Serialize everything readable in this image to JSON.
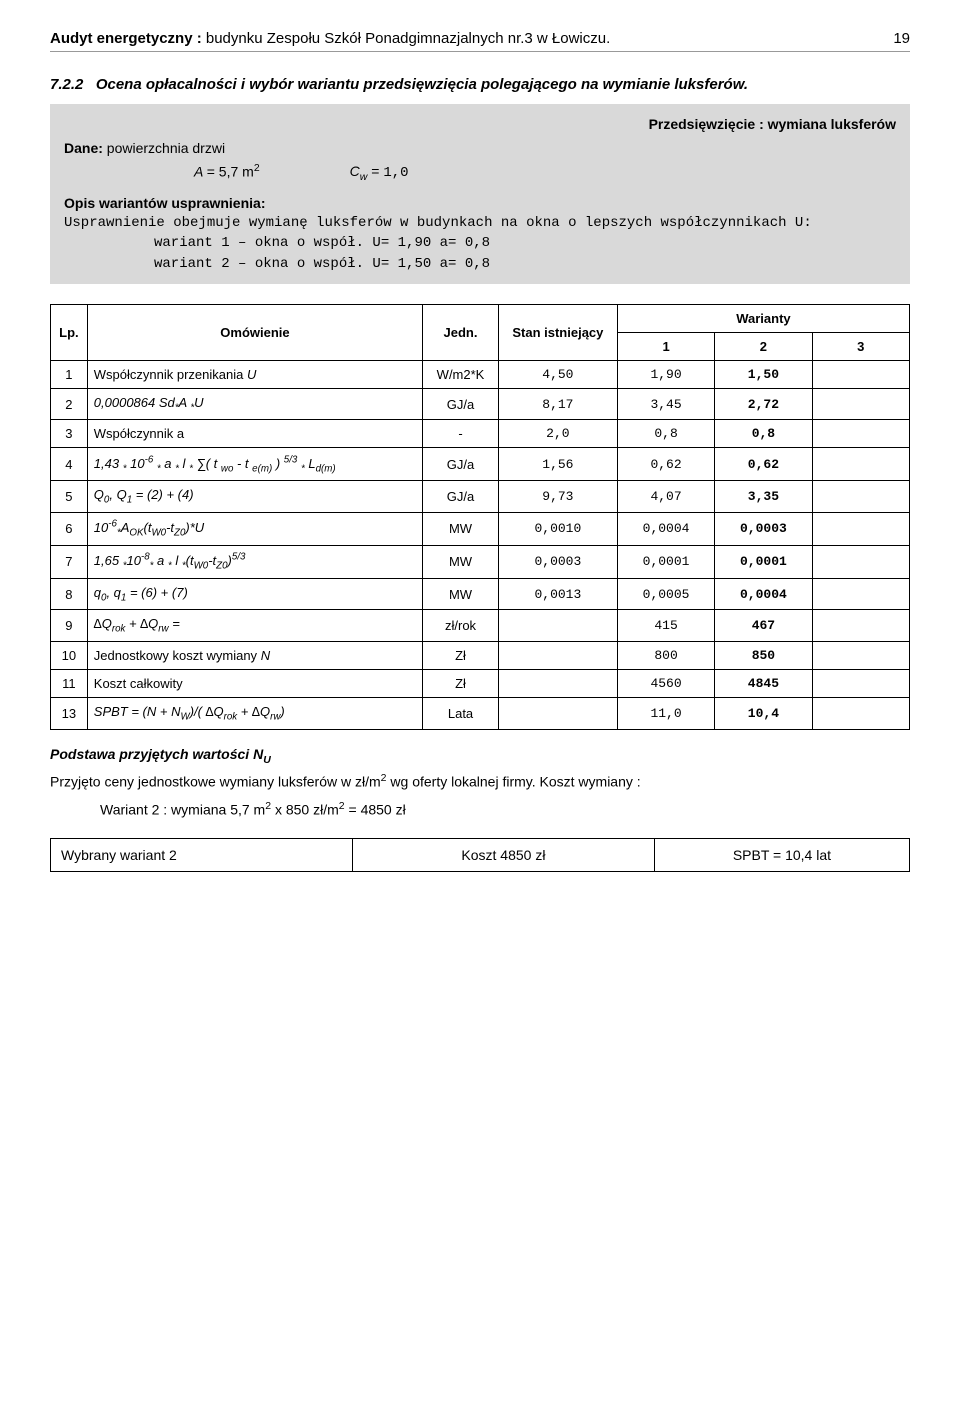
{
  "header": {
    "prefix": "Audyt energetyczny : ",
    "title": "budynku  Zespołu Szkół Ponadgimnazjalnych  nr.3  w Łowiczu.",
    "page": "19"
  },
  "section": {
    "num": "7.2.2",
    "title": "Ocena opłacalności i wybór wariantu przedsięwzięcia polegającego na wymianie luksferów."
  },
  "graybox": {
    "rightLabel": "Przedsięwzięcie : wymiana luksferów",
    "l1_label": "Dane:",
    "l1_text": " powierzchnia  drzwi",
    "formula_A_lhs": "A ",
    "formula_A_rhs": " =  5,7 m",
    "formula_A_sup": "2",
    "formula_C_lhs": "C",
    "formula_C_sub": "w",
    "formula_C_rhs": " = ",
    "formula_C_val": "1,0",
    "opis_head": "Opis wariantów usprawnienia:",
    "opis_text": "Usprawnienie obejmuje wymianę luksferów w budynkach na okna o lepszych współczynnikach U:",
    "war1": "wariant 1 – okna o współ.  U= 1,90 a= 0,8",
    "war2": "wariant 2 – okna o współ.  U= 1,50 a= 0,8"
  },
  "table": {
    "headers": {
      "lp": "Lp.",
      "om": "Omówienie",
      "jed": "Jedn.",
      "stan": "Stan istniejący",
      "war": "Warianty",
      "w1": "1",
      "w2": "2",
      "w3": "3"
    },
    "rows": [
      {
        "lp": "1",
        "om_html": "Współczynnik przenikania        <span class='italic'>U</span>",
        "jed": "W/m2*K",
        "stan": "4,50",
        "v1": "1,90",
        "v2": "1,50",
        "v3": ""
      },
      {
        "lp": "2",
        "om_html": "<span class='italic'>0,0000864 Sd<sub>*</sub>A <sub>*</sub>U</span>",
        "jed": "GJ/a",
        "stan": "8,17",
        "v1": "3,45",
        "v2": "2,72",
        "v3": ""
      },
      {
        "lp": "3",
        "om_html": "Współczynnik a",
        "jed": "-",
        "stan": "2,0",
        "v1": "0,8",
        "v2": "0,8",
        "v3": ""
      },
      {
        "lp": "4",
        "om_html": "<span class='italic'>1,43 <sub>*</sub> 10<sup>-6</sup> <sub>*</sub> a <sub>*</sub> l <sub>*</sub> ∑( t <sub>wo</sub> - t <sub>e(m)</sub> ) <sup>5/3</sup> <sub>*</sub> L<sub>d(m)</sub></span>",
        "jed": "GJ/a",
        "stan": "1,56",
        "v1": "0,62",
        "v2": "0,62",
        "v3": ""
      },
      {
        "lp": "5",
        "om_html": "<span class='italic'>Q<sub>0</sub>, Q<sub>1</sub> = (2) + (4)</span>",
        "jed": "GJ/a",
        "stan": "9,73",
        "v1": "4,07",
        "v2": "3,35",
        "v3": ""
      },
      {
        "lp": "6",
        "om_html": "<span class='italic'>10<sup>-6</sup><sub>*</sub>A<sub>OK</sub>(t<sub>W0</sub>-t<sub>Z0</sub>)*U</span>",
        "jed": "MW",
        "stan": "0,0010",
        "v1": "0,0004",
        "v2": "0,0003",
        "v3": ""
      },
      {
        "lp": "7",
        "om_html": "<span class='italic'>1,65 <sub>*</sub>10<sup>-8</sup><sub>*</sub> a <sub>*</sub> l <sub>*</sub>(t<sub>W0</sub>-t<sub>Z0</sub>)<sup>5/3</sup></span>",
        "jed": "MW",
        "stan": "0,0003",
        "v1": "0,0001",
        "v2": "0,0001",
        "v3": ""
      },
      {
        "lp": "8",
        "om_html": "<span class='italic'>q<sub>0</sub>, q<sub>1</sub> = (6) + (7)</span>",
        "jed": "MW",
        "stan": "0,0013",
        "v1": "0,0005",
        "v2": "0,0004",
        "v3": ""
      },
      {
        "lp": "9",
        "om_html": "<span class='italic'>∆Q<sub>rok</sub> + ∆Q<sub>rw</sub> =</span>",
        "jed": "zł/rok",
        "stan": "",
        "v1": "415",
        "v2": "467",
        "v3": ""
      },
      {
        "lp": "10",
        "om_html": "Jednostkowy koszt wymiany   <span class='italic'>N</span>",
        "jed": "Zł",
        "stan": "",
        "v1": "800",
        "v2": "850",
        "v3": ""
      },
      {
        "lp": "11",
        "om_html": "Koszt   całkowity",
        "jed": "Zł",
        "stan": "",
        "v1": "4560",
        "v2": "4845",
        "v3": ""
      },
      {
        "lp": "13",
        "om_html": "<span class='italic'>SPBT = (N + N<sub>W</sub>)/( ∆Q<sub>rok</sub> + ∆Q<sub>rw</sub>)</span>",
        "jed": "Lata",
        "stan": "",
        "v1": "11,0",
        "v2": "10,4",
        "v3": ""
      }
    ]
  },
  "nu": {
    "head_pre": "Podstawa przyjętych wartości ",
    "head_sym": "N",
    "head_sub": "U",
    "line1_a": "Przyjęto ceny jednostkowe wymiany luksferów  w zł/m",
    "line1_sup": "2",
    "line1_b": " wg oferty lokalnej firmy. Koszt wymiany :",
    "line2_a": "Wariant 2 : wymiana 5,7  m",
    "line2_sup1": "2",
    "line2_b": "   x 850  zł/m",
    "line2_sup2": "2",
    "line2_c": "   = 4850  zł"
  },
  "footer": {
    "c1": "Wybrany wariant 2",
    "c2": "Koszt  4850  zł",
    "c3": "SPBT = 10,4  lat"
  },
  "colors": {
    "bg": "#ffffff",
    "gray": "#d9d9d9",
    "border": "#000000",
    "hr": "#999999"
  }
}
